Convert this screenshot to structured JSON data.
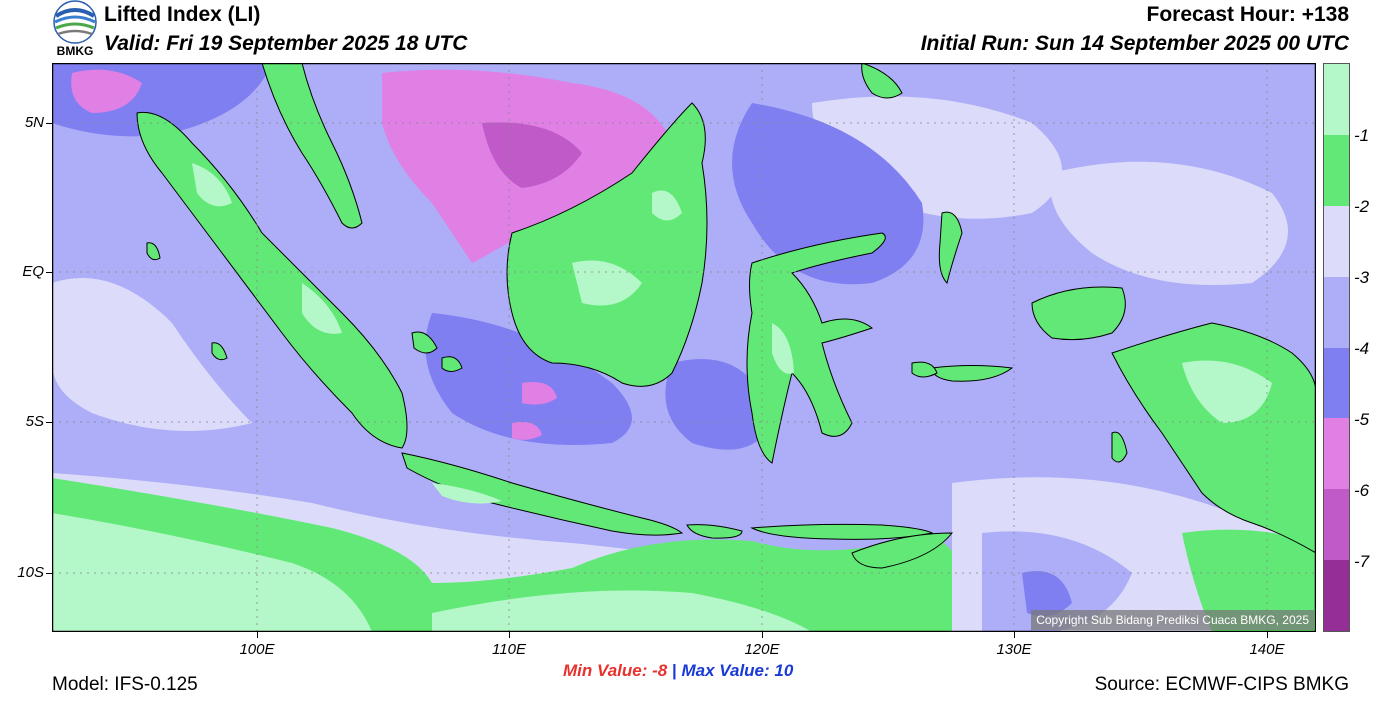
{
  "header": {
    "logo_text": "BMKG",
    "title": "Lifted Index (LI)",
    "valid": "Valid: Fri 19 September 2025 18 UTC",
    "forecast_hour": "Forecast Hour: +138",
    "initial_run": "Initial Run: Sun 14 September 2025 00 UTC"
  },
  "map": {
    "lat_ticks": [
      "5N",
      "EQ",
      "5S",
      "10S"
    ],
    "lon_ticks": [
      "100E",
      "110E",
      "120E",
      "130E",
      "140E"
    ],
    "copyright": "Copyright Sub Bidang Prediksi Cuaca BMKG, 2025"
  },
  "colorbar": {
    "labels": [
      "-1",
      "-2",
      "-3",
      "-4",
      "-5",
      "-6",
      "-7"
    ],
    "bins": [
      {
        "range": "> -1",
        "color": "#b4f7c8"
      },
      {
        "range": "-1 to -2",
        "color": "#62e876"
      },
      {
        "range": "-2 to -3",
        "color": "#dcdcfa"
      },
      {
        "range": "-3 to -4",
        "color": "#aeaef8"
      },
      {
        "range": "-4 to -5",
        "color": "#7f7ff2"
      },
      {
        "range": "-5 to -6",
        "color": "#e07fe4"
      },
      {
        "range": "-6 to -7",
        "color": "#c05ac8"
      },
      {
        "range": "< -7",
        "color": "#962e98"
      }
    ]
  },
  "stats": {
    "min_label": "Min Value:",
    "min_value": "-8",
    "separator": "|",
    "max_label": "Max Value:",
    "max_value": "10",
    "min_color": "#e8322e",
    "max_color": "#1a3ad6"
  },
  "footer": {
    "model": "Model: IFS-0.125",
    "source": "Source: ECMWF-CIPS BMKG"
  }
}
